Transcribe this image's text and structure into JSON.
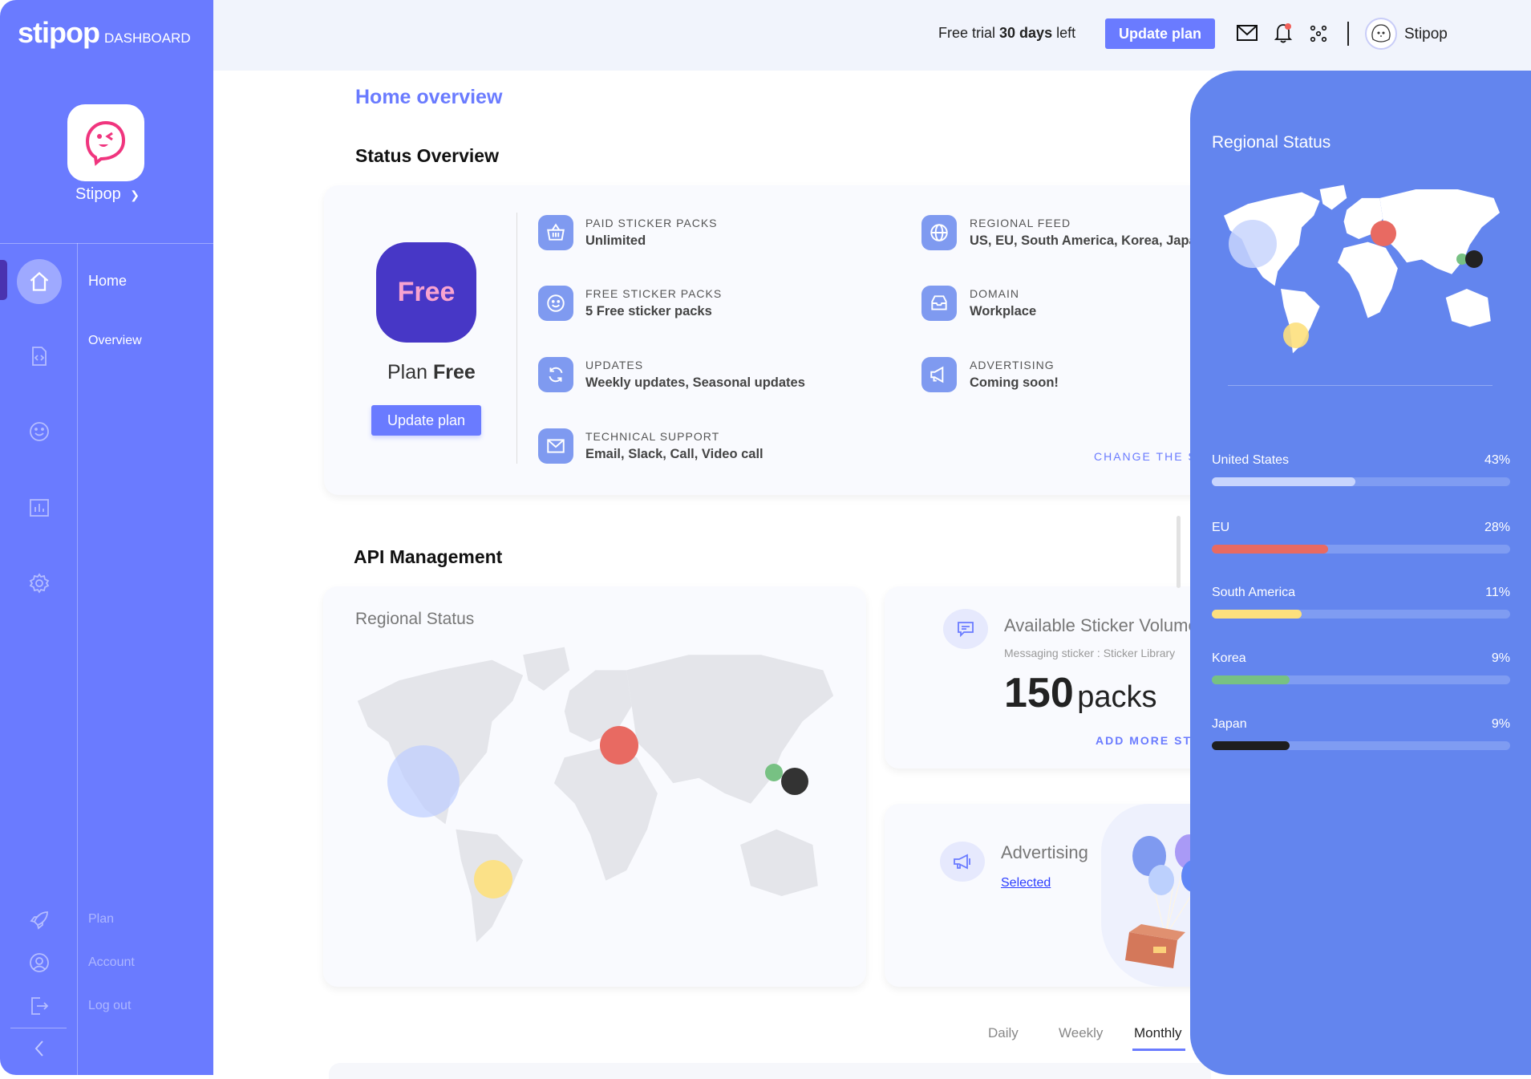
{
  "sidebar": {
    "logo": "stipop",
    "logo_suffix": "DASHBOARD",
    "app_name": "Stipop",
    "nav": [
      {
        "label": "Home",
        "icon": "home-icon",
        "active": true
      },
      {
        "label": "Overview"
      }
    ],
    "icons": [
      "code-file-icon",
      "smile-icon",
      "chart-icon",
      "gear-icon"
    ],
    "bottom": [
      {
        "label": "Plan",
        "icon": "rocket-icon"
      },
      {
        "label": "Account",
        "icon": "user-circle-icon"
      },
      {
        "label": "Log out",
        "icon": "logout-icon"
      }
    ]
  },
  "header": {
    "trial_prefix": "Free trial",
    "trial_bold": "30 days",
    "trial_suffix": "left",
    "update_plan": "Update plan",
    "user_name": "Stipop",
    "notification_dot_color": "#f0605a"
  },
  "main": {
    "title": "Home overview",
    "status": {
      "heading": "Status Overview",
      "plan_badge": "Free",
      "plan_prefix": "Plan",
      "plan_name": "Free",
      "update_plan": "Update plan",
      "features": [
        {
          "label": "PAID STICKER PACKS",
          "value": "Unlimited",
          "icon": "basket-icon"
        },
        {
          "label": "FREE STICKER PACKS",
          "value": "5 Free sticker packs",
          "icon": "smile-icon"
        },
        {
          "label": "UPDATES",
          "value": "Weekly updates, Seasonal updates",
          "icon": "refresh-icon"
        },
        {
          "label": "TECHNICAL SUPPORT",
          "value": "Email, Slack, Call, Video call",
          "icon": "mail-icon"
        },
        {
          "label": "REGIONAL FEED",
          "value": "US, EU, South America, Korea, Japan",
          "icon": "globe-icon"
        },
        {
          "label": "DOMAIN",
          "value": "Workplace",
          "icon": "inbox-icon"
        },
        {
          "label": "ADVERTISING",
          "value": "Coming soon!",
          "icon": "megaphone-icon"
        }
      ],
      "change_link": "CHANGE THE STATUS"
    },
    "api": {
      "heading": "API Management",
      "map_title": "Regional Status",
      "sticker": {
        "title": "Available Sticker Volume",
        "subtitle": "Messaging sticker : Sticker Library",
        "count": "150",
        "unit": "packs",
        "link": "ADD MORE STICKERS"
      },
      "advertising": {
        "title": "Advertising",
        "status": "Selected"
      },
      "tabs": [
        {
          "label": "Daily"
        },
        {
          "label": "Weekly"
        },
        {
          "label": "Monthly",
          "active": true
        }
      ]
    }
  },
  "regional_panel": {
    "title": "Regional Status",
    "regions": [
      {
        "name": "United States",
        "percent": "43%",
        "fill": 0.48,
        "color": "#c8d5fd"
      },
      {
        "name": "EU",
        "percent": "28%",
        "fill": 0.39,
        "color": "#e86a62"
      },
      {
        "name": "South America",
        "percent": "11%",
        "fill": 0.3,
        "color": "#fde07d"
      },
      {
        "name": "Korea",
        "percent": "9%",
        "fill": 0.26,
        "color": "#77c183"
      },
      {
        "name": "Japan",
        "percent": "9%",
        "fill": 0.26,
        "color": "#1e1e1e"
      }
    ]
  }
}
